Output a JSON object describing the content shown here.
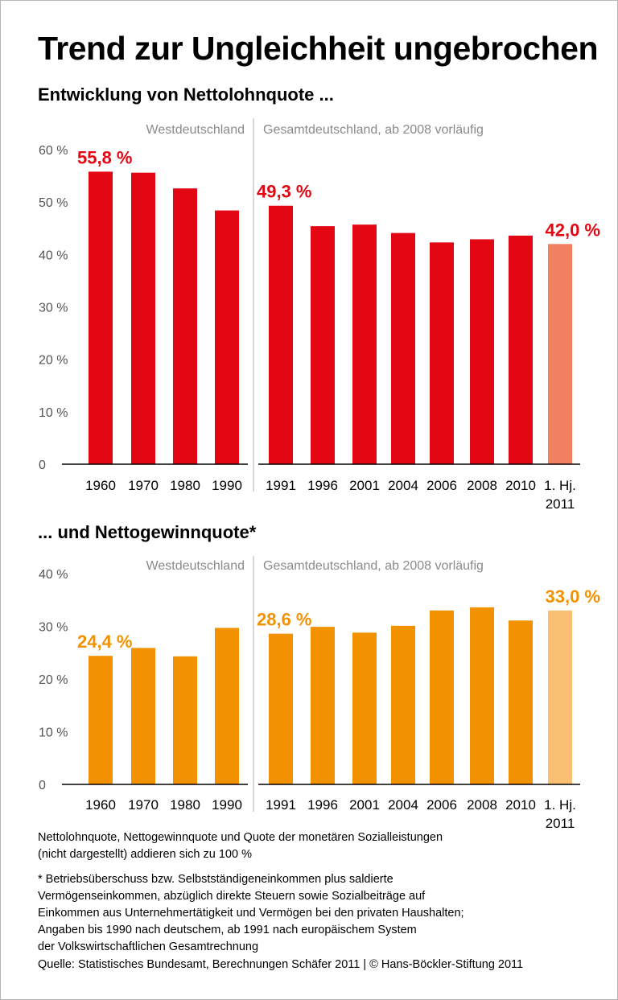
{
  "title": "Trend zur Ungleichheit ungebrochen",
  "charts": [
    {
      "subtitle": "Entwicklung von Nettolohnquote ...",
      "region_left": "Westdeutschland",
      "region_right": "Gesamtdeutschland, ab 2008 vorläufig",
      "colors": {
        "main": "#e30613",
        "highlight": "#f08060",
        "label": "#e30613"
      }
    },
    {
      "subtitle": "... und Nettogewinnquote*",
      "region_left": "Westdeutschland",
      "region_right": "Gesamtdeutschland, ab 2008 vorläufig",
      "colors": {
        "main": "#f39200",
        "highlight": "#f9bf72",
        "label": "#f39200"
      }
    }
  ],
  "chart_data": [
    {
      "type": "bar",
      "title": "Entwicklung von Nettolohnquote ...",
      "categories": [
        "1960",
        "1970",
        "1980",
        "1990",
        "1991",
        "1996",
        "2001",
        "2004",
        "2006",
        "2008",
        "2010",
        "1. Hj. 2011"
      ],
      "values": [
        55.8,
        55.6,
        52.6,
        48.4,
        49.3,
        45.4,
        45.7,
        44.1,
        42.3,
        42.9,
        43.6,
        42.0
      ],
      "highlight_index": 11,
      "data_labels": [
        {
          "index": 0,
          "text": "55,8 %"
        },
        {
          "index": 4,
          "text": "49,3 %"
        },
        {
          "index": 11,
          "text": "42,0 %"
        }
      ],
      "ylim": [
        0,
        60
      ],
      "yticks": [
        {
          "value": 0,
          "label": "0"
        },
        {
          "value": 10,
          "label": "10 %"
        },
        {
          "value": 20,
          "label": "20 %"
        },
        {
          "value": 30,
          "label": "30 %"
        },
        {
          "value": 40,
          "label": "40 %"
        },
        {
          "value": 50,
          "label": "50 %"
        },
        {
          "value": 60,
          "label": "60 %"
        }
      ],
      "split_after_index": 3,
      "grid": false
    },
    {
      "type": "bar",
      "title": "... und Nettogewinnquote*",
      "categories": [
        "1960",
        "1970",
        "1980",
        "1990",
        "1991",
        "1996",
        "2001",
        "2004",
        "2006",
        "2008",
        "2010",
        "1. Hj. 2011"
      ],
      "values": [
        24.4,
        25.9,
        24.3,
        29.7,
        28.6,
        29.9,
        28.8,
        30.1,
        33.0,
        33.6,
        31.1,
        33.0
      ],
      "highlight_index": 11,
      "data_labels": [
        {
          "index": 0,
          "text": "24,4 %"
        },
        {
          "index": 4,
          "text": "28,6 %"
        },
        {
          "index": 11,
          "text": "33,0 %"
        }
      ],
      "ylim": [
        0,
        40
      ],
      "yticks": [
        {
          "value": 0,
          "label": "0"
        },
        {
          "value": 10,
          "label": "10 %"
        },
        {
          "value": 20,
          "label": "20 %"
        },
        {
          "value": 30,
          "label": "30 %"
        },
        {
          "value": 40,
          "label": "40 %"
        }
      ],
      "split_after_index": 3,
      "grid": false
    }
  ],
  "notes": {
    "sum_note": "Nettolohnquote, Nettogewinnquote und Quote der monetären Sozialleistungen\n(nicht dargestellt) addieren sich zu 100 %",
    "footnote": "* Betriebsüberschuss bzw. Selbstständigeneinkommen plus saldierte\nVermögenseinkommen, abzüglich direkte Steuern sowie Sozialbeiträge auf\nEinkommen aus Unternehmertätigkeit und Vermögen bei den privaten Haushalten;\nAngaben bis 1990 nach deutschem, ab 1991 nach europäischem System\nder Volkswirtschaftlichen Gesamtrechnung",
    "source": "Quelle: Statistisches Bundesamt, Berechnungen Schäfer 2011 | © Hans-Böckler-Stiftung 2011"
  }
}
